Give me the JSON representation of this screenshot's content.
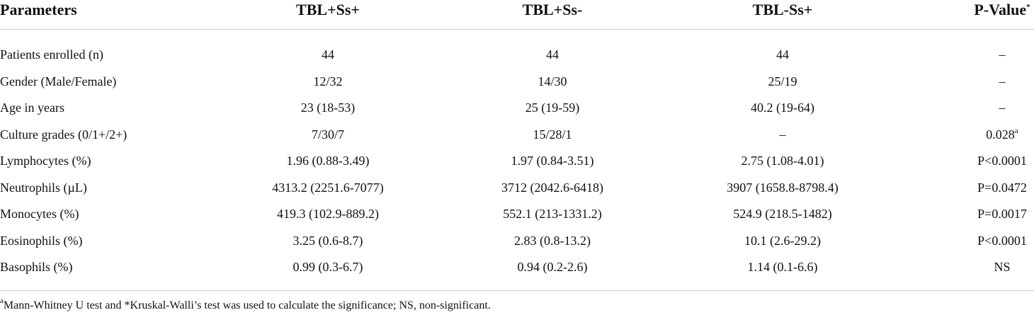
{
  "table": {
    "header": [
      "Parameters",
      "TBL+Ss+",
      "TBL+Ss-",
      "TBL-Ss+",
      {
        "text": "P-Value",
        "sup": "*"
      }
    ],
    "rows": [
      [
        "Patients enrolled (n)",
        "44",
        "44",
        "44",
        "–"
      ],
      [
        "Gender (Male/Female)",
        "12/32",
        "14/30",
        "25/19",
        "–"
      ],
      [
        "Age in years",
        "23 (18-53)",
        "25 (19-59)",
        "40.2 (19-64)",
        "–"
      ],
      [
        "Culture grades (0/1+/2+)",
        "7/30/7",
        "15/28/1",
        "–",
        {
          "text": "0.028",
          "sup": "a"
        }
      ],
      [
        "Lymphocytes (%)",
        "1.96 (0.88-3.49)",
        "1.97 (0.84-3.51)",
        "2.75 (1.08-4.01)",
        "P<0.0001"
      ],
      [
        "Neutrophils (µL)",
        "4313.2 (2251.6-7077)",
        "3712 (2042.6-6418)",
        "3907 (1658.8-8798.4)",
        "P=0.0472"
      ],
      [
        "Monocytes (%)",
        "419.3 (102.9-889.2)",
        "552.1 (213-1331.2)",
        "524.9 (218.5-1482)",
        "P=0.0017"
      ],
      [
        "Eosinophils (%)",
        "3.25 (0.6-8.7)",
        "2.83 (0.8-13.2)",
        "10.1 (2.6-29.2)",
        "P<0.0001"
      ],
      [
        "Basophils (%)",
        "0.99 (0.3-6.7)",
        "0.94 (0.2-2.6)",
        "1.14 (0.1-6.6)",
        "NS"
      ]
    ]
  },
  "footnote": {
    "sup": "a",
    "text": "Mann-Whitney U test and *Kruskal-Walli’s test was used to calculate the significance; NS, non-significant."
  }
}
